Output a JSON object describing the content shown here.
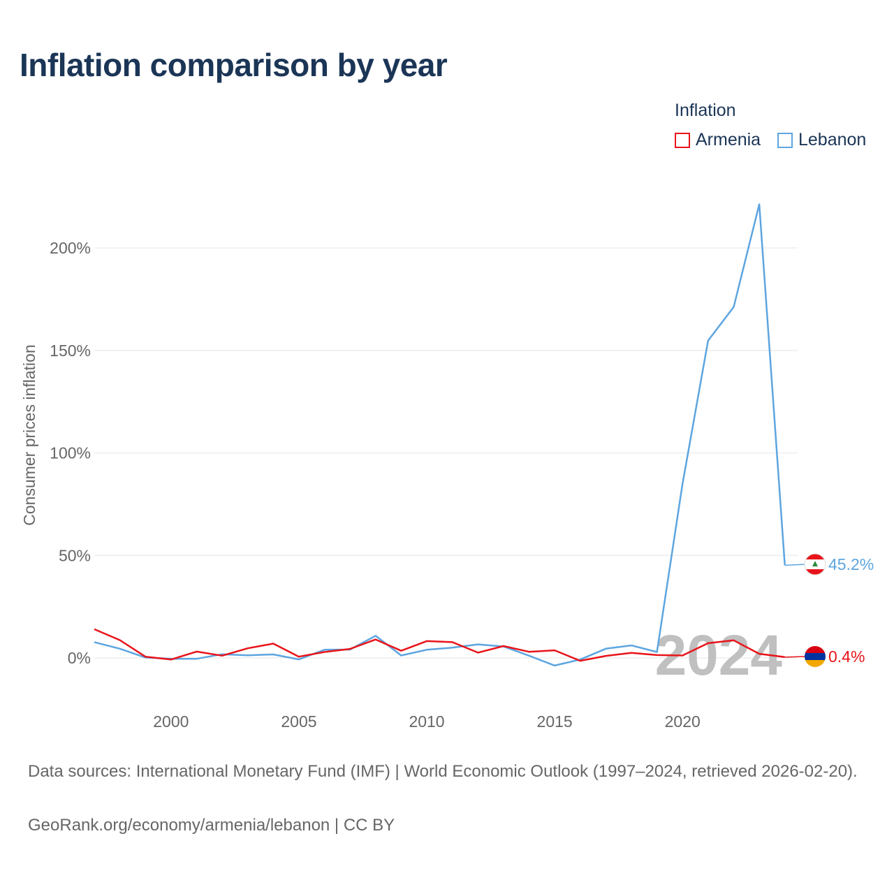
{
  "title": "Inflation comparison by year",
  "legend": {
    "title": "Inflation",
    "items": [
      {
        "label": "Armenia",
        "color": "#e8141a"
      },
      {
        "label": "Lebanon",
        "color": "#5da5e0"
      }
    ]
  },
  "chart_data": {
    "type": "line",
    "title": "Inflation comparison by year",
    "xlabel": "",
    "ylabel": "Consumer prices inflation",
    "xlim": [
      1997,
      2024
    ],
    "ylim": [
      -20,
      220
    ],
    "x_ticks": [
      2000,
      2005,
      2010,
      2015,
      2020
    ],
    "y_ticks": [
      0,
      50,
      100,
      150,
      200
    ],
    "y_tick_labels": [
      "0%",
      "50%",
      "100%",
      "150%",
      "200%"
    ],
    "grid": true,
    "legend_position": "top-right",
    "watermark_year": "2024",
    "x": [
      1997,
      1998,
      1999,
      2000,
      2001,
      2002,
      2003,
      2004,
      2005,
      2006,
      2007,
      2008,
      2009,
      2010,
      2011,
      2012,
      2013,
      2014,
      2015,
      2016,
      2017,
      2018,
      2019,
      2020,
      2021,
      2022,
      2023,
      2024
    ],
    "series": [
      {
        "name": "Armenia",
        "color": "#e8141a",
        "values": [
          14.0,
          8.7,
          0.6,
          -0.8,
          3.1,
          1.1,
          4.7,
          7.0,
          0.6,
          2.9,
          4.4,
          9.0,
          3.5,
          8.2,
          7.7,
          2.6,
          5.8,
          3.0,
          3.7,
          -1.4,
          1.0,
          2.5,
          1.4,
          1.2,
          7.2,
          8.6,
          2.0,
          0.4
        ],
        "end_label": "0.4%"
      },
      {
        "name": "Lebanon",
        "color": "#5da5e0",
        "values": [
          7.7,
          4.5,
          0.2,
          -0.4,
          -0.4,
          1.8,
          1.3,
          1.7,
          -0.7,
          4.0,
          4.1,
          10.8,
          1.2,
          4.0,
          5.0,
          6.6,
          5.6,
          1.1,
          -3.7,
          -0.8,
          4.5,
          6.1,
          2.9,
          84.9,
          154.8,
          171.2,
          221.3,
          45.2
        ],
        "end_label": "45.2%"
      }
    ]
  },
  "footer": {
    "sources": "Data sources: International Monetary Fund (IMF) | World Economic Outlook (1997–2024, retrieved 2026-02-20).",
    "credit": "GeoRank.org/economy/armenia/lebanon | CC BY"
  },
  "icons": {
    "lebanon_flag": "lebanon-flag-icon",
    "armenia_flag": "armenia-flag-icon"
  }
}
